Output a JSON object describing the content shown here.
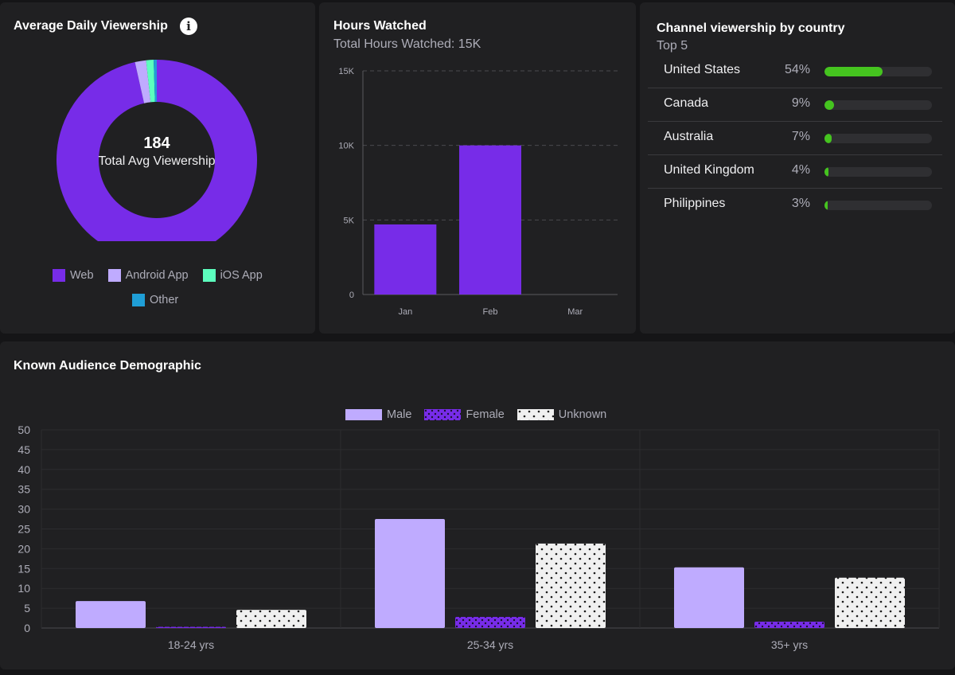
{
  "average_daily_viewership": {
    "title": "Average Daily Viewership",
    "info_icon": "info-icon",
    "total_value": "184",
    "total_label": "Total Avg Viewership",
    "chart_data": {
      "type": "pie",
      "title": "Average Daily Viewership",
      "labels": [
        "Web",
        "Android App",
        "iOS App",
        "Other"
      ],
      "values": [
        96.5,
        1.8,
        1.2,
        0.5
      ],
      "colors": [
        "#772ce8",
        "#bfabff",
        "#5cffbe",
        "#1f9ed6"
      ]
    },
    "legend": [
      {
        "label": "Web",
        "color": "#772ce8"
      },
      {
        "label": "Android App",
        "color": "#bfabff"
      },
      {
        "label": "iOS App",
        "color": "#5cffbe"
      },
      {
        "label": "Other",
        "color": "#1f9ed6"
      }
    ]
  },
  "hours_watched": {
    "title": "Hours Watched",
    "subtitle": "Total Hours Watched: 15K",
    "chart_data": {
      "type": "bar",
      "title": "Hours Watched",
      "categories": [
        "Jan",
        "Feb",
        "Mar"
      ],
      "values": [
        4700,
        10000,
        0
      ],
      "ylim": [
        0,
        15000
      ],
      "yticks": [
        "0",
        "5K",
        "10K",
        "15K"
      ],
      "ytick_values": [
        0,
        5000,
        10000,
        15000
      ],
      "color": "#772ce8"
    }
  },
  "country": {
    "title": "Channel viewership by country",
    "subtitle": "Top 5",
    "bar_color": "#45c41f",
    "rows": [
      {
        "name": "United States",
        "pct": "54%",
        "value": 54
      },
      {
        "name": "Canada",
        "pct": "9%",
        "value": 9
      },
      {
        "name": "Australia",
        "pct": "7%",
        "value": 7
      },
      {
        "name": "United Kingdom",
        "pct": "4%",
        "value": 4
      },
      {
        "name": "Philippines",
        "pct": "3%",
        "value": 3
      }
    ]
  },
  "demographic": {
    "title": "Known Audience Demographic",
    "legend": [
      {
        "label": "Male"
      },
      {
        "label": "Female"
      },
      {
        "label": "Unknown"
      }
    ],
    "chart_data": {
      "type": "bar",
      "title": "Known Audience Demographic",
      "categories": [
        "18-24 yrs",
        "25-34 yrs",
        "35+ yrs"
      ],
      "series": [
        {
          "name": "Male",
          "values": [
            6.8,
            27.5,
            15.3
          ],
          "color": "#bfabff"
        },
        {
          "name": "Female",
          "values": [
            0.3,
            2.8,
            1.6
          ],
          "color": "#772ce8"
        },
        {
          "name": "Unknown",
          "values": [
            4.6,
            21.3,
            12.7
          ],
          "color": "#f0f0f0"
        }
      ],
      "ylim": [
        0,
        50
      ],
      "yticks": [
        "0",
        "5",
        "10",
        "15",
        "20",
        "25",
        "30",
        "35",
        "40",
        "45",
        "50"
      ]
    }
  }
}
